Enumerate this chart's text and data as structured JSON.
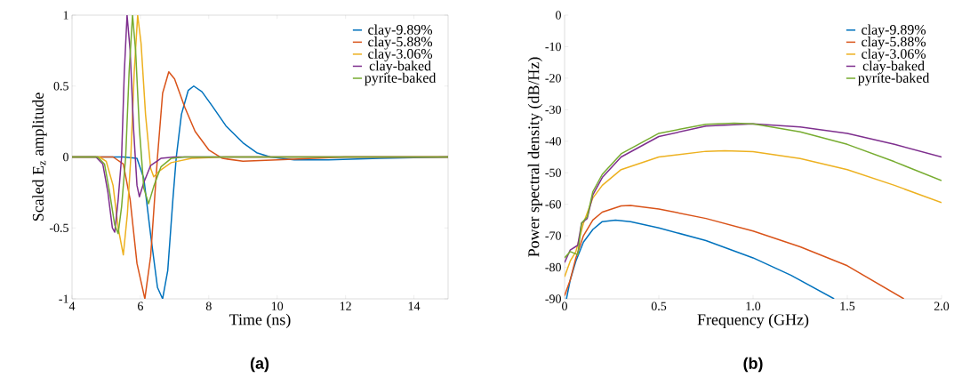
{
  "chart_data": [
    {
      "type": "line",
      "xlabel": "Time (ns)",
      "ylabel": "Scaled E$_{z}$ amplitude",
      "annotations": [
        "**(a)**"
      ],
      "xlim": [
        4,
        15
      ],
      "ylim": [
        -1,
        1
      ],
      "xticks": [
        4,
        6,
        8,
        10,
        12,
        14
      ],
      "yticks": [
        -1,
        -0.5,
        0,
        0.5,
        1
      ],
      "legend": "top right",
      "grid": false,
      "series": [
        {
          "name": "clay-9.89%",
          "color": "#0072bd",
          "x": [
            4,
            5.5,
            5.9,
            6.1,
            6.3,
            6.5,
            6.65,
            6.8,
            6.95,
            7.05,
            7.2,
            7.4,
            7.56,
            7.8,
            8.1,
            8.5,
            9,
            9.4,
            9.8,
            10.5,
            11.5,
            13,
            15
          ],
          "values": [
            0,
            0,
            -0.01,
            -0.15,
            -0.55,
            -0.92,
            -1,
            -0.8,
            -0.3,
            0,
            0.3,
            0.47,
            0.5,
            0.46,
            0.36,
            0.22,
            0.1,
            0.03,
            0,
            -0.02,
            -0.02,
            -0.01,
            0
          ]
        },
        {
          "name": "clay-5.88%",
          "color": "#d95319",
          "x": [
            4,
            5.2,
            5.5,
            5.7,
            5.9,
            6.13,
            6.3,
            6.5,
            6.65,
            6.83,
            7.0,
            7.3,
            7.6,
            8.0,
            8.4,
            9,
            10,
            12,
            15
          ],
          "values": [
            0,
            0,
            -0.05,
            -0.3,
            -0.75,
            -1,
            -0.7,
            0,
            0.45,
            0.6,
            0.55,
            0.35,
            0.18,
            0.05,
            -0.01,
            -0.03,
            -0.02,
            0,
            0
          ]
        },
        {
          "name": "clay-3.06%",
          "color": "#edb120",
          "x": [
            4,
            4.8,
            5.0,
            5.2,
            5.35,
            5.5,
            5.62,
            5.72,
            5.82,
            5.92,
            6.02,
            6.15,
            6.3,
            6.39,
            6.55,
            6.9,
            7.5,
            8.5,
            15
          ],
          "values": [
            0,
            0,
            -0.03,
            -0.2,
            -0.5,
            -0.69,
            -0.4,
            0,
            0.6,
            1,
            0.8,
            0.3,
            -0.08,
            -0.14,
            -0.1,
            -0.04,
            -0.01,
            0,
            0
          ]
        },
        {
          "name": "clay-baked",
          "color": "#7e2f8e",
          "x": [
            4,
            4.7,
            4.9,
            5.05,
            5.18,
            5.25,
            5.35,
            5.45,
            5.53,
            5.61,
            5.7,
            5.8,
            5.9,
            5.97,
            6.1,
            6.3,
            6.6,
            7,
            15
          ],
          "values": [
            0,
            0,
            -0.05,
            -0.25,
            -0.5,
            -0.53,
            -0.3,
            0,
            0.6,
            1,
            0.75,
            0.2,
            -0.2,
            -0.28,
            -0.18,
            -0.06,
            -0.01,
            0,
            0
          ]
        },
        {
          "name": "pyrite-baked",
          "color": "#77ac30",
          "x": [
            4,
            4.75,
            4.95,
            5.1,
            5.25,
            5.35,
            5.45,
            5.57,
            5.67,
            5.77,
            5.86,
            5.97,
            6.1,
            6.24,
            6.4,
            6.6,
            6.9,
            7.3,
            15
          ],
          "values": [
            0,
            0,
            -0.05,
            -0.25,
            -0.48,
            -0.54,
            -0.35,
            0,
            0.6,
            1,
            0.75,
            0.2,
            -0.22,
            -0.33,
            -0.2,
            -0.07,
            -0.01,
            0,
            0
          ]
        }
      ]
    },
    {
      "type": "line",
      "xlabel": "Frequency (GHz)",
      "ylabel": "Power spectral density (dB/Hz)",
      "annotations": [
        "**(b)**"
      ],
      "xlim": [
        0,
        2
      ],
      "ylim": [
        -90,
        0
      ],
      "xticks": [
        0,
        0.5,
        {
          "value": 1,
          "label": "1.0"
        },
        1.5,
        {
          "value": 2,
          "label": "2.0"
        }
      ],
      "yticks": [
        -90,
        -80,
        -70,
        -60,
        -50,
        -40,
        -30,
        -20,
        -10,
        0
      ],
      "legend": "top right",
      "grid": false,
      "series": [
        {
          "name": "clay-9.89%",
          "color": "#0072bd",
          "x": [
            0.01,
            0.03,
            0.06,
            0.1,
            0.15,
            0.2,
            0.27,
            0.35,
            0.5,
            0.75,
            1.0,
            1.2,
            1.43
          ],
          "values": [
            -90,
            -84,
            -78,
            -72,
            -68,
            -65.5,
            -65,
            -65.5,
            -67.5,
            -71.5,
            -77,
            -82.5,
            -90
          ]
        },
        {
          "name": "clay-5.88%",
          "color": "#d95319",
          "x": [
            0,
            0.03,
            0.06,
            0.1,
            0.15,
            0.2,
            0.3,
            0.35,
            0.5,
            0.75,
            1.0,
            1.25,
            1.5,
            1.8
          ],
          "values": [
            -89,
            -84,
            -77,
            -70,
            -65,
            -62.5,
            -60.5,
            -60.4,
            -61.5,
            -64.5,
            -68.5,
            -73.5,
            -79.5,
            -90
          ]
        },
        {
          "name": "clay-3.06%",
          "color": "#edb120",
          "x": [
            0,
            0.03,
            0.06,
            0.1,
            0.15,
            0.2,
            0.3,
            0.5,
            0.75,
            0.85,
            1.0,
            1.25,
            1.5,
            1.75,
            2.0
          ],
          "values": [
            -83,
            -78,
            -75,
            -66,
            -58,
            -54,
            -49,
            -45,
            -43.2,
            -43,
            -43.3,
            -45.5,
            -49,
            -54,
            -59.5
          ]
        },
        {
          "name": "clay-baked",
          "color": "#7e2f8e",
          "x": [
            0,
            0.03,
            0.07,
            0.09,
            0.12,
            0.15,
            0.2,
            0.3,
            0.5,
            0.75,
            1.0,
            1.25,
            1.5,
            1.75,
            2.0
          ],
          "values": [
            -78.5,
            -74.5,
            -73,
            -66,
            -64.5,
            -57,
            -51.5,
            -45,
            -38.5,
            -35.2,
            -34.5,
            -35.5,
            -37.5,
            -41,
            -45
          ]
        },
        {
          "name": "pyrite-baked",
          "color": "#77ac30",
          "x": [
            0,
            0.03,
            0.07,
            0.09,
            0.12,
            0.15,
            0.2,
            0.3,
            0.5,
            0.75,
            0.9,
            1.0,
            1.25,
            1.5,
            1.75,
            2.0
          ],
          "values": [
            -77,
            -75,
            -76,
            -66,
            -64,
            -56,
            -50.5,
            -44,
            -37.5,
            -34.6,
            -34.3,
            -34.5,
            -37,
            -41,
            -46.5,
            -52.5
          ]
        }
      ]
    }
  ]
}
